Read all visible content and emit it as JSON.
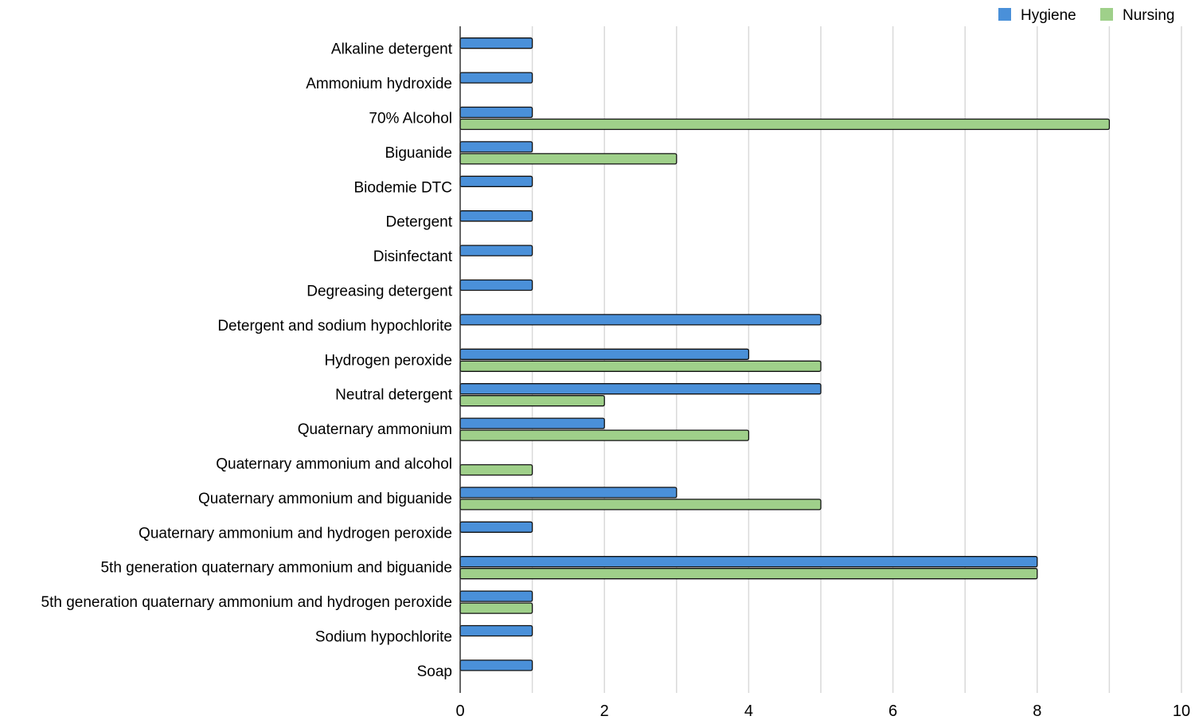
{
  "chart_data": {
    "type": "bar",
    "orientation": "horizontal",
    "categories": [
      "Alkaline detergent",
      "Ammonium hydroxide",
      "70% Alcohol",
      "Biguanide",
      "Biodemie DTC",
      "Detergent",
      "Disinfectant",
      "Degreasing detergent",
      "Detergent and sodium hypochlorite",
      "Hydrogen peroxide",
      "Neutral detergent",
      "Quaternary ammonium",
      "Quaternary ammonium and alcohol",
      "Quaternary ammonium and biguanide",
      "Quaternary ammonium and hydrogen peroxide",
      "5th generation quaternary ammonium and biguanide",
      "5th generation quaternary ammonium and hydrogen peroxide",
      "Sodium hypochlorite",
      "Soap"
    ],
    "series": [
      {
        "name": "Hygiene",
        "color": "#4a90d9",
        "values": [
          1,
          1,
          1,
          1,
          1,
          1,
          1,
          1,
          5,
          4,
          5,
          2,
          0,
          3,
          1,
          8,
          1,
          1,
          1
        ]
      },
      {
        "name": "Nursing",
        "color": "#9fd08a",
        "values": [
          0,
          0,
          9,
          3,
          0,
          0,
          0,
          0,
          0,
          5,
          2,
          4,
          1,
          5,
          0,
          8,
          1,
          0,
          0
        ]
      }
    ],
    "x_ticks": [
      0,
      2,
      4,
      6,
      8,
      10
    ],
    "xlim": [
      0,
      10
    ],
    "title": "",
    "xlabel": "",
    "ylabel": "",
    "grid": "vertical",
    "legend_position": "top-right"
  }
}
